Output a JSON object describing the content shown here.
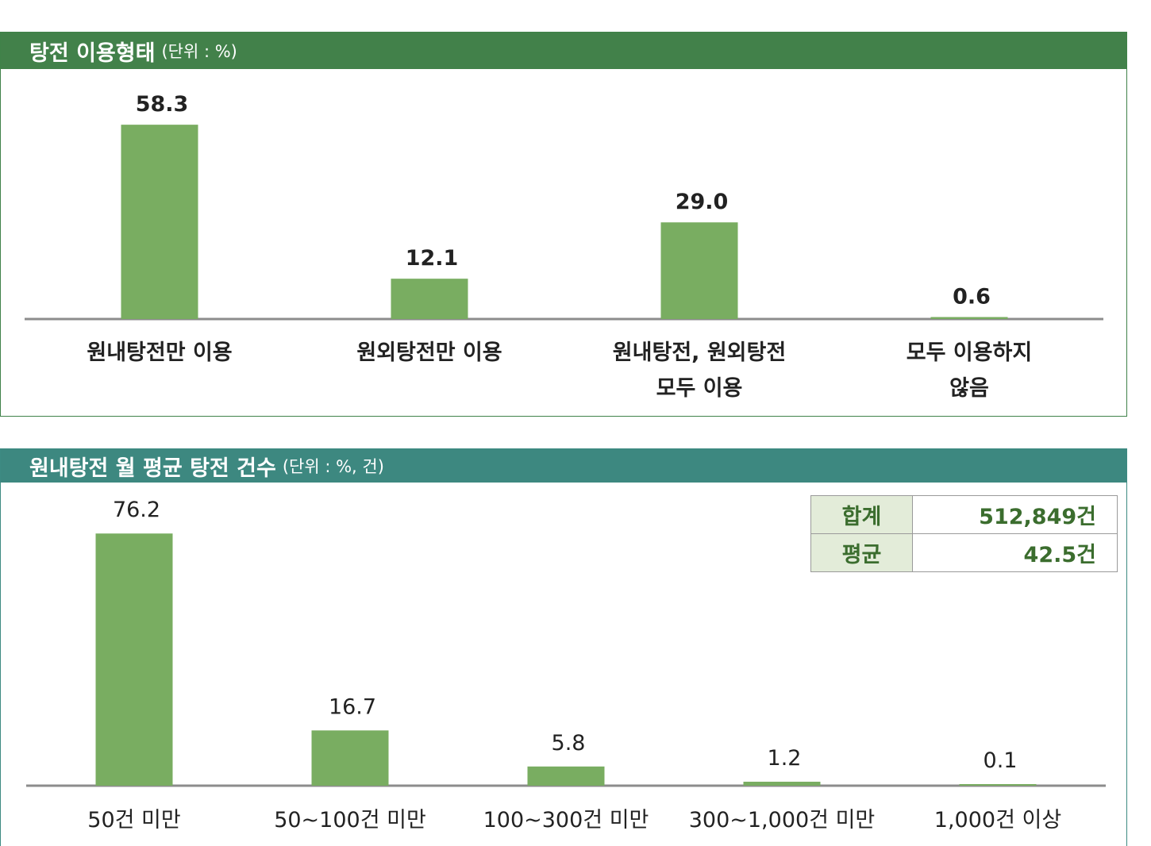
{
  "chart_data": [
    {
      "type": "bar",
      "title": "탕전 이용형태",
      "unit": "(단위 : %)",
      "categories": [
        [
          "원내탕전만 이용"
        ],
        [
          "원외탕전만 이용"
        ],
        [
          "원내탕전, 원외탕전",
          "모두 이용"
        ],
        [
          "모두 이용하지",
          "않음"
        ]
      ],
      "values": [
        58.3,
        12.1,
        29.0,
        0.6
      ],
      "value_labels": [
        "58.3",
        "12.1",
        "29.0",
        "0.6"
      ],
      "color": "#79ad61",
      "ylim": [
        0,
        60
      ]
    },
    {
      "type": "bar",
      "title": "원내탕전 월 평균 탕전 건수",
      "unit": "(단위 : %, 건)",
      "categories": [
        "50건 미만",
        "50~100건 미만",
        "100~300건 미만",
        "300~1,000건 미만",
        "1,000건 이상"
      ],
      "values": [
        76.2,
        16.7,
        5.8,
        1.2,
        0.1
      ],
      "value_labels": [
        "76.2",
        "16.7",
        "5.8",
        "1.2",
        "0.1"
      ],
      "color": "#79ad61",
      "ylim": [
        0,
        80
      ]
    }
  ],
  "summary_table": [
    {
      "label": "합계",
      "value": "512,849건"
    },
    {
      "label": "평균",
      "value": "42.5건"
    }
  ]
}
